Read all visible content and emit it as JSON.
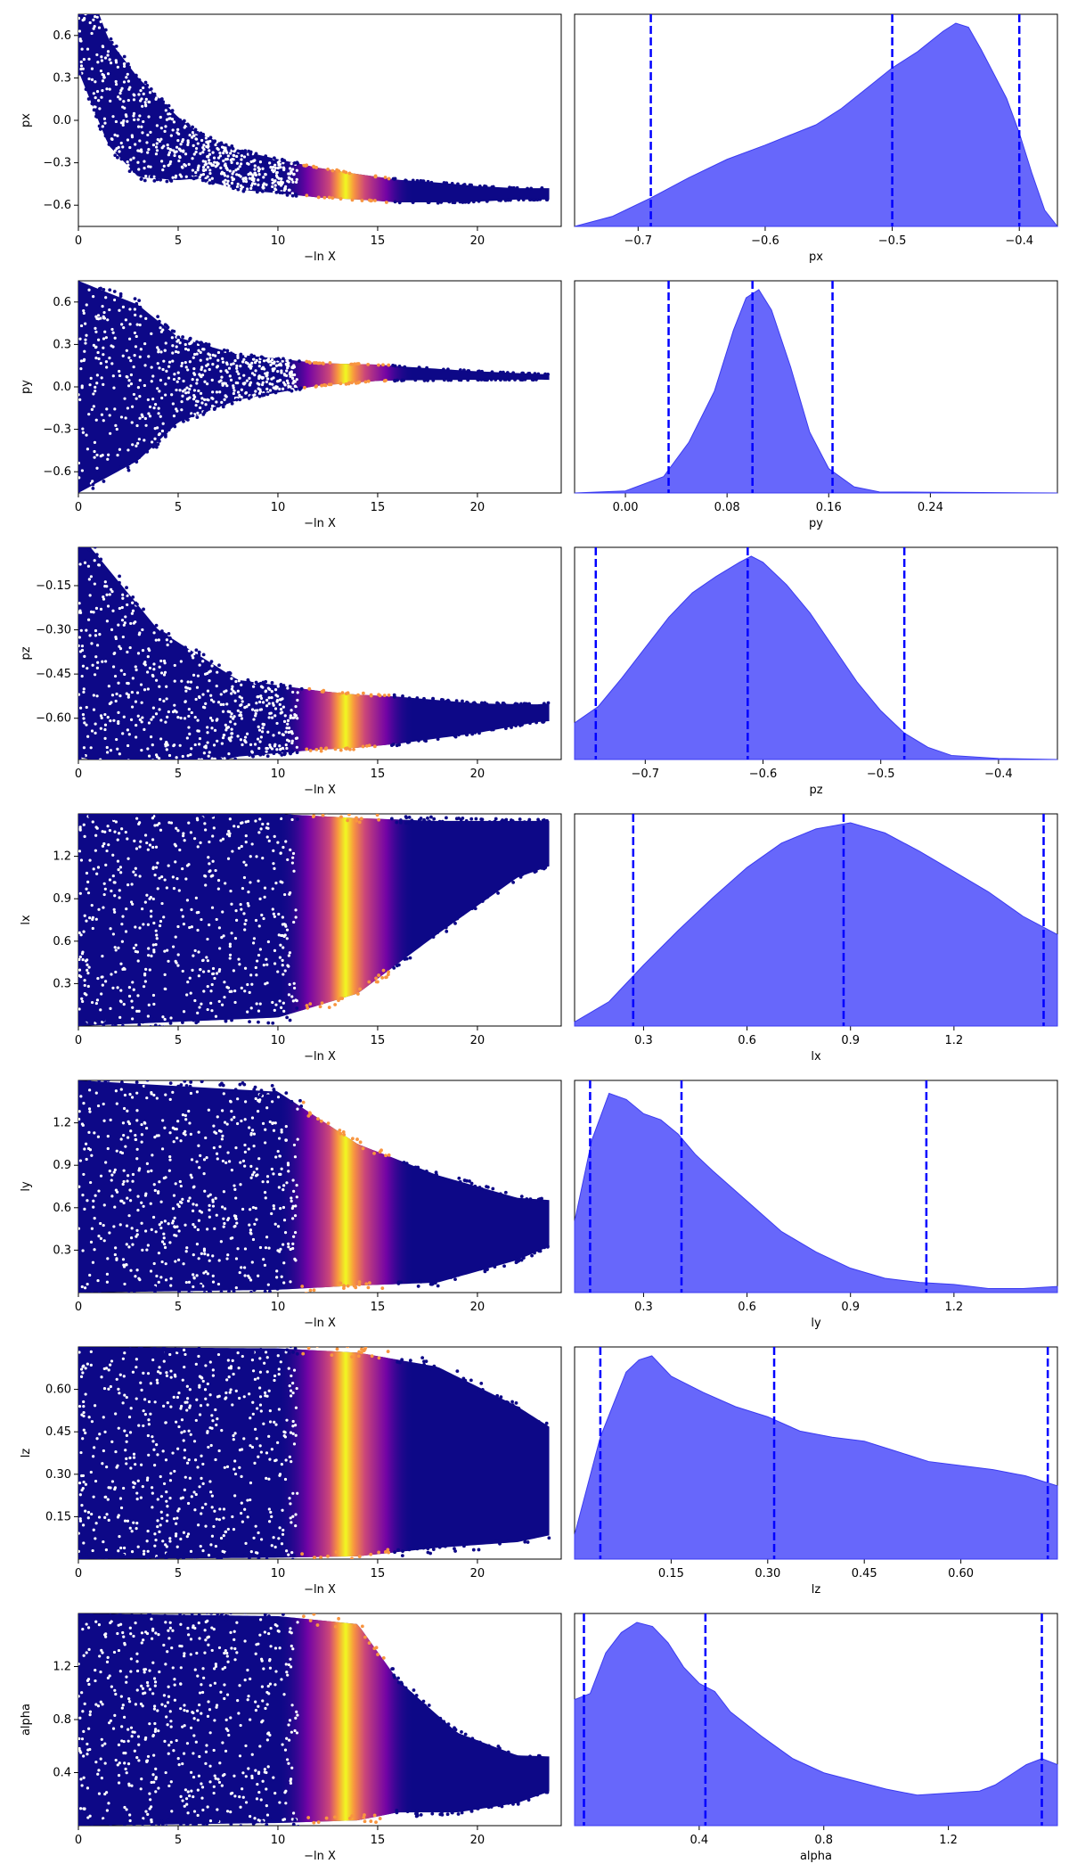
{
  "figure": {
    "type": "dynesty traceplot",
    "colors": {
      "trace_colormap": [
        "#0d0887",
        "#7e03a8",
        "#cc4778",
        "#f89540",
        "#f0f921"
      ],
      "kde_fill": "#6262fb",
      "quantile_line": "#0000ff"
    }
  },
  "chart_data": [
    {
      "type": "scatter",
      "panel": "trace",
      "param": "px",
      "xlabel": "−ln X",
      "ylabel": "px",
      "xlim": [
        0,
        24.2
      ],
      "ylim": [
        -0.75,
        0.75
      ],
      "xticks": [
        0,
        5,
        10,
        15,
        20
      ],
      "xtick_labels": [
        "0",
        "5",
        "10",
        "15",
        "20"
      ],
      "yticks": [
        -0.6,
        -0.3,
        0.0,
        0.3,
        0.6
      ],
      "ytick_labels": [
        "−0.6",
        "−0.3",
        "0.0",
        "0.3",
        "0.6"
      ],
      "trace": [
        [
          0,
          0.75
        ],
        [
          1.5,
          0.2
        ],
        [
          3,
          -0.05
        ],
        [
          5,
          -0.2
        ],
        [
          8,
          -0.35
        ],
        [
          12,
          -0.44
        ],
        [
          16,
          -0.5
        ],
        [
          20,
          -0.52
        ],
        [
          23.5,
          -0.52
        ]
      ],
      "spread": [
        [
          0,
          0.4
        ],
        [
          3,
          0.35
        ],
        [
          6,
          0.16
        ],
        [
          10,
          0.12
        ],
        [
          14,
          0.09
        ],
        [
          18,
          0.07
        ],
        [
          22,
          0.04
        ]
      ],
      "peak": 13.4
    },
    {
      "type": "area",
      "panel": "posterior",
      "param": "px",
      "xlabel": "px",
      "xlim": [
        -0.75,
        -0.37
      ],
      "xticks": [
        -0.7,
        -0.6,
        -0.5,
        -0.4
      ],
      "xtick_labels": [
        "−0.7",
        "−0.6",
        "−0.5",
        "−0.4"
      ],
      "quantiles": [
        -0.69,
        -0.5,
        -0.4
      ],
      "density": [
        [
          -0.75,
          0.0
        ],
        [
          -0.72,
          0.05
        ],
        [
          -0.69,
          0.14
        ],
        [
          -0.66,
          0.24
        ],
        [
          -0.63,
          0.33
        ],
        [
          -0.6,
          0.4
        ],
        [
          -0.58,
          0.45
        ],
        [
          -0.56,
          0.5
        ],
        [
          -0.54,
          0.58
        ],
        [
          -0.52,
          0.68
        ],
        [
          -0.5,
          0.78
        ],
        [
          -0.48,
          0.86
        ],
        [
          -0.46,
          0.96
        ],
        [
          -0.45,
          1.0
        ],
        [
          -0.44,
          0.98
        ],
        [
          -0.43,
          0.87
        ],
        [
          -0.41,
          0.63
        ],
        [
          -0.4,
          0.46
        ],
        [
          -0.39,
          0.26
        ],
        [
          -0.38,
          0.08
        ],
        [
          -0.37,
          0.0
        ]
      ]
    },
    {
      "type": "scatter",
      "panel": "trace",
      "param": "py",
      "xlabel": "−ln X",
      "ylabel": "py",
      "xlim": [
        0,
        24.2
      ],
      "ylim": [
        -0.75,
        0.75
      ],
      "xticks": [
        0,
        5,
        10,
        15,
        20
      ],
      "xtick_labels": [
        "0",
        "5",
        "10",
        "15",
        "20"
      ],
      "yticks": [
        -0.6,
        -0.3,
        0.0,
        0.3,
        0.6
      ],
      "ytick_labels": [
        "−0.6",
        "−0.3",
        "0.0",
        "0.3",
        "0.6"
      ],
      "trace": [
        [
          0,
          0.0
        ],
        [
          5,
          0.05
        ],
        [
          10,
          0.08
        ],
        [
          15,
          0.1
        ],
        [
          20,
          0.08
        ],
        [
          23.5,
          0.07
        ]
      ],
      "spread": [
        [
          0,
          0.75
        ],
        [
          3,
          0.55
        ],
        [
          5,
          0.3
        ],
        [
          8,
          0.16
        ],
        [
          12,
          0.08
        ],
        [
          16,
          0.05
        ],
        [
          20,
          0.03
        ],
        [
          23,
          0.02
        ]
      ],
      "peak": 13.4
    },
    {
      "type": "area",
      "panel": "posterior",
      "param": "py",
      "xlabel": "py",
      "xlim": [
        -0.04,
        0.34
      ],
      "xticks": [
        0.0,
        0.08,
        0.16,
        0.24
      ],
      "xtick_labels": [
        "0.00",
        "0.08",
        "0.16",
        "0.24"
      ],
      "quantiles": [
        0.034,
        0.1,
        0.163
      ],
      "density": [
        [
          -0.04,
          0.0
        ],
        [
          0.0,
          0.01
        ],
        [
          0.03,
          0.08
        ],
        [
          0.05,
          0.25
        ],
        [
          0.07,
          0.5
        ],
        [
          0.085,
          0.8
        ],
        [
          0.095,
          0.96
        ],
        [
          0.105,
          1.0
        ],
        [
          0.115,
          0.9
        ],
        [
          0.13,
          0.62
        ],
        [
          0.145,
          0.3
        ],
        [
          0.16,
          0.12
        ],
        [
          0.18,
          0.03
        ],
        [
          0.2,
          0.005
        ],
        [
          0.34,
          0.0
        ]
      ]
    },
    {
      "type": "scatter",
      "panel": "trace",
      "param": "pz",
      "xlabel": "−ln X",
      "ylabel": "pz",
      "xlim": [
        0,
        24.2
      ],
      "ylim": [
        -0.74,
        -0.02
      ],
      "xticks": [
        0,
        5,
        10,
        15,
        20
      ],
      "xtick_labels": [
        "0",
        "5",
        "10",
        "15",
        "20"
      ],
      "yticks": [
        -0.6,
        -0.45,
        -0.3,
        -0.15
      ],
      "ytick_labels": [
        "−0.60",
        "−0.45",
        "−0.30",
        "−0.15"
      ],
      "trace": [
        [
          0,
          -0.35
        ],
        [
          4,
          -0.55
        ],
        [
          8,
          -0.6
        ],
        [
          14,
          -0.61
        ],
        [
          20,
          -0.6
        ],
        [
          23.5,
          -0.58
        ]
      ],
      "spread": [
        [
          0,
          0.38
        ],
        [
          4,
          0.25
        ],
        [
          8,
          0.13
        ],
        [
          12,
          0.1
        ],
        [
          16,
          0.08
        ],
        [
          20,
          0.05
        ],
        [
          23,
          0.03
        ]
      ],
      "peak": 13.4
    },
    {
      "type": "area",
      "panel": "posterior",
      "param": "pz",
      "xlabel": "pz",
      "xlim": [
        -0.76,
        -0.35
      ],
      "xticks": [
        -0.7,
        -0.6,
        -0.5,
        -0.4
      ],
      "xtick_labels": [
        "−0.7",
        "−0.6",
        "−0.5",
        "−0.4"
      ],
      "quantiles": [
        -0.742,
        -0.613,
        -0.48
      ],
      "density": [
        [
          -0.76,
          0.18
        ],
        [
          -0.74,
          0.26
        ],
        [
          -0.72,
          0.4
        ],
        [
          -0.7,
          0.55
        ],
        [
          -0.68,
          0.7
        ],
        [
          -0.66,
          0.82
        ],
        [
          -0.64,
          0.9
        ],
        [
          -0.62,
          0.97
        ],
        [
          -0.61,
          1.0
        ],
        [
          -0.6,
          0.97
        ],
        [
          -0.58,
          0.86
        ],
        [
          -0.56,
          0.72
        ],
        [
          -0.54,
          0.55
        ],
        [
          -0.52,
          0.38
        ],
        [
          -0.5,
          0.24
        ],
        [
          -0.48,
          0.13
        ],
        [
          -0.46,
          0.06
        ],
        [
          -0.44,
          0.02
        ],
        [
          -0.4,
          0.005
        ],
        [
          -0.35,
          0.0
        ]
      ]
    },
    {
      "type": "scatter",
      "panel": "trace",
      "param": "lx",
      "xlabel": "−ln X",
      "ylabel": "lx",
      "xlim": [
        0,
        24.2
      ],
      "ylim": [
        0.0,
        1.5
      ],
      "xticks": [
        0,
        5,
        10,
        15,
        20
      ],
      "xtick_labels": [
        "0",
        "5",
        "10",
        "15",
        "20"
      ],
      "yticks": [
        0.3,
        0.6,
        0.9,
        1.2
      ],
      "ytick_labels": [
        "0.3",
        "0.6",
        "0.9",
        "1.2"
      ],
      "trace": [
        [
          0,
          0.75
        ],
        [
          10,
          0.78
        ],
        [
          14,
          0.85
        ],
        [
          18,
          1.05
        ],
        [
          22,
          1.25
        ],
        [
          24,
          1.3
        ]
      ],
      "spread": [
        [
          0,
          0.75
        ],
        [
          10,
          0.72
        ],
        [
          14,
          0.62
        ],
        [
          18,
          0.4
        ],
        [
          22,
          0.2
        ],
        [
          24,
          0.15
        ]
      ],
      "peak": 13.4
    },
    {
      "type": "area",
      "panel": "posterior",
      "param": "lx",
      "xlabel": "lx",
      "xlim": [
        0.1,
        1.5
      ],
      "xticks": [
        0.3,
        0.6,
        0.9,
        1.2
      ],
      "xtick_labels": [
        "0.3",
        "0.6",
        "0.9",
        "1.2"
      ],
      "quantiles": [
        0.27,
        0.88,
        1.46
      ],
      "density": [
        [
          0.1,
          0.02
        ],
        [
          0.2,
          0.12
        ],
        [
          0.3,
          0.3
        ],
        [
          0.4,
          0.47
        ],
        [
          0.5,
          0.63
        ],
        [
          0.6,
          0.78
        ],
        [
          0.7,
          0.9
        ],
        [
          0.8,
          0.97
        ],
        [
          0.9,
          1.0
        ],
        [
          1.0,
          0.95
        ],
        [
          1.1,
          0.86
        ],
        [
          1.2,
          0.76
        ],
        [
          1.3,
          0.66
        ],
        [
          1.4,
          0.54
        ],
        [
          1.5,
          0.45
        ]
      ]
    },
    {
      "type": "scatter",
      "panel": "trace",
      "param": "ly",
      "xlabel": "−ln X",
      "ylabel": "ly",
      "xlim": [
        0,
        24.2
      ],
      "ylim": [
        0.0,
        1.5
      ],
      "xticks": [
        0,
        5,
        10,
        15,
        20
      ],
      "xtick_labels": [
        "0",
        "5",
        "10",
        "15",
        "20"
      ],
      "yticks": [
        0.3,
        0.6,
        0.9,
        1.2
      ],
      "ytick_labels": [
        "0.3",
        "0.6",
        "0.9",
        "1.2"
      ],
      "trace": [
        [
          0,
          0.75
        ],
        [
          10,
          0.72
        ],
        [
          14,
          0.55
        ],
        [
          18,
          0.45
        ],
        [
          22,
          0.45
        ],
        [
          24,
          0.5
        ]
      ],
      "spread": [
        [
          0,
          0.75
        ],
        [
          10,
          0.7
        ],
        [
          14,
          0.5
        ],
        [
          18,
          0.38
        ],
        [
          22,
          0.22
        ],
        [
          24,
          0.15
        ]
      ],
      "peak": 13.4
    },
    {
      "type": "area",
      "panel": "posterior",
      "param": "ly",
      "xlabel": "ly",
      "xlim": [
        0.1,
        1.5
      ],
      "xticks": [
        0.3,
        0.6,
        0.9,
        1.2
      ],
      "xtick_labels": [
        "0.3",
        "0.6",
        "0.9",
        "1.2"
      ],
      "quantiles": [
        0.145,
        0.41,
        1.12
      ],
      "density": [
        [
          0.1,
          0.35
        ],
        [
          0.15,
          0.75
        ],
        [
          0.2,
          0.98
        ],
        [
          0.25,
          0.95
        ],
        [
          0.3,
          0.88
        ],
        [
          0.35,
          0.85
        ],
        [
          0.4,
          0.78
        ],
        [
          0.45,
          0.68
        ],
        [
          0.5,
          0.6
        ],
        [
          0.6,
          0.45
        ],
        [
          0.7,
          0.3
        ],
        [
          0.8,
          0.2
        ],
        [
          0.9,
          0.12
        ],
        [
          1.0,
          0.07
        ],
        [
          1.1,
          0.05
        ],
        [
          1.2,
          0.04
        ],
        [
          1.3,
          0.02
        ],
        [
          1.4,
          0.02
        ],
        [
          1.5,
          0.03
        ]
      ]
    },
    {
      "type": "scatter",
      "panel": "trace",
      "param": "lz",
      "xlabel": "−ln X",
      "ylabel": "lz",
      "xlim": [
        0,
        24.2
      ],
      "ylim": [
        0.0,
        0.75
      ],
      "xticks": [
        0,
        5,
        10,
        15,
        20
      ],
      "xtick_labels": [
        "0",
        "5",
        "10",
        "15",
        "20"
      ],
      "yticks": [
        0.15,
        0.3,
        0.45,
        0.6
      ],
      "ytick_labels": [
        "0.15",
        "0.30",
        "0.45",
        "0.60"
      ],
      "trace": [
        [
          0,
          0.375
        ],
        [
          10,
          0.375
        ],
        [
          14,
          0.37
        ],
        [
          18,
          0.36
        ],
        [
          22,
          0.3
        ],
        [
          24,
          0.27
        ]
      ],
      "spread": [
        [
          0,
          0.375
        ],
        [
          10,
          0.37
        ],
        [
          14,
          0.36
        ],
        [
          18,
          0.32
        ],
        [
          22,
          0.24
        ],
        [
          24,
          0.18
        ]
      ],
      "peak": 13.4
    },
    {
      "type": "area",
      "panel": "posterior",
      "param": "lz",
      "xlabel": "lz",
      "xlim": [
        0.0,
        0.75
      ],
      "xticks": [
        0.15,
        0.3,
        0.45,
        0.6
      ],
      "xtick_labels": [
        "0.15",
        "0.30",
        "0.45",
        "0.60"
      ],
      "quantiles": [
        0.04,
        0.31,
        0.735
      ],
      "density": [
        [
          0.0,
          0.12
        ],
        [
          0.04,
          0.6
        ],
        [
          0.08,
          0.92
        ],
        [
          0.1,
          0.98
        ],
        [
          0.12,
          1.0
        ],
        [
          0.15,
          0.9
        ],
        [
          0.2,
          0.82
        ],
        [
          0.25,
          0.75
        ],
        [
          0.3,
          0.7
        ],
        [
          0.35,
          0.63
        ],
        [
          0.4,
          0.6
        ],
        [
          0.45,
          0.58
        ],
        [
          0.5,
          0.53
        ],
        [
          0.55,
          0.48
        ],
        [
          0.6,
          0.46
        ],
        [
          0.65,
          0.44
        ],
        [
          0.7,
          0.41
        ],
        [
          0.75,
          0.36
        ]
      ]
    },
    {
      "type": "scatter",
      "panel": "trace",
      "param": "alpha",
      "xlabel": "−ln X",
      "ylabel": "alpha",
      "xlim": [
        0,
        24.2
      ],
      "ylim": [
        0.0,
        1.6
      ],
      "xticks": [
        0,
        5,
        10,
        15,
        20
      ],
      "xtick_labels": [
        "0",
        "5",
        "10",
        "15",
        "20"
      ],
      "yticks": [
        0.4,
        0.8,
        1.2
      ],
      "ytick_labels": [
        "0.4",
        "0.8",
        "1.2"
      ],
      "trace": [
        [
          0,
          0.8
        ],
        [
          10,
          0.8
        ],
        [
          14,
          0.78
        ],
        [
          16,
          0.6
        ],
        [
          19,
          0.4
        ],
        [
          22,
          0.35
        ],
        [
          24,
          0.4
        ]
      ],
      "spread": [
        [
          0,
          0.8
        ],
        [
          10,
          0.78
        ],
        [
          14,
          0.74
        ],
        [
          16,
          0.5
        ],
        [
          19,
          0.3
        ],
        [
          22,
          0.18
        ],
        [
          24,
          0.12
        ]
      ],
      "peak": 13.4
    },
    {
      "type": "area",
      "panel": "posterior",
      "param": "alpha",
      "xlabel": "alpha",
      "xlim": [
        0.0,
        1.55
      ],
      "xticks": [
        0.4,
        0.8,
        1.2
      ],
      "xtick_labels": [
        "0.4",
        "0.8",
        "1.2"
      ],
      "quantiles": [
        0.03,
        0.42,
        1.5
      ],
      "density": [
        [
          0.0,
          0.62
        ],
        [
          0.05,
          0.65
        ],
        [
          0.1,
          0.85
        ],
        [
          0.15,
          0.95
        ],
        [
          0.2,
          1.0
        ],
        [
          0.25,
          0.98
        ],
        [
          0.3,
          0.9
        ],
        [
          0.35,
          0.78
        ],
        [
          0.4,
          0.7
        ],
        [
          0.45,
          0.66
        ],
        [
          0.5,
          0.56
        ],
        [
          0.6,
          0.44
        ],
        [
          0.7,
          0.33
        ],
        [
          0.8,
          0.26
        ],
        [
          0.9,
          0.22
        ],
        [
          1.0,
          0.18
        ],
        [
          1.1,
          0.15
        ],
        [
          1.2,
          0.16
        ],
        [
          1.3,
          0.17
        ],
        [
          1.35,
          0.2
        ],
        [
          1.4,
          0.25
        ],
        [
          1.45,
          0.3
        ],
        [
          1.5,
          0.33
        ],
        [
          1.55,
          0.3
        ]
      ]
    }
  ]
}
